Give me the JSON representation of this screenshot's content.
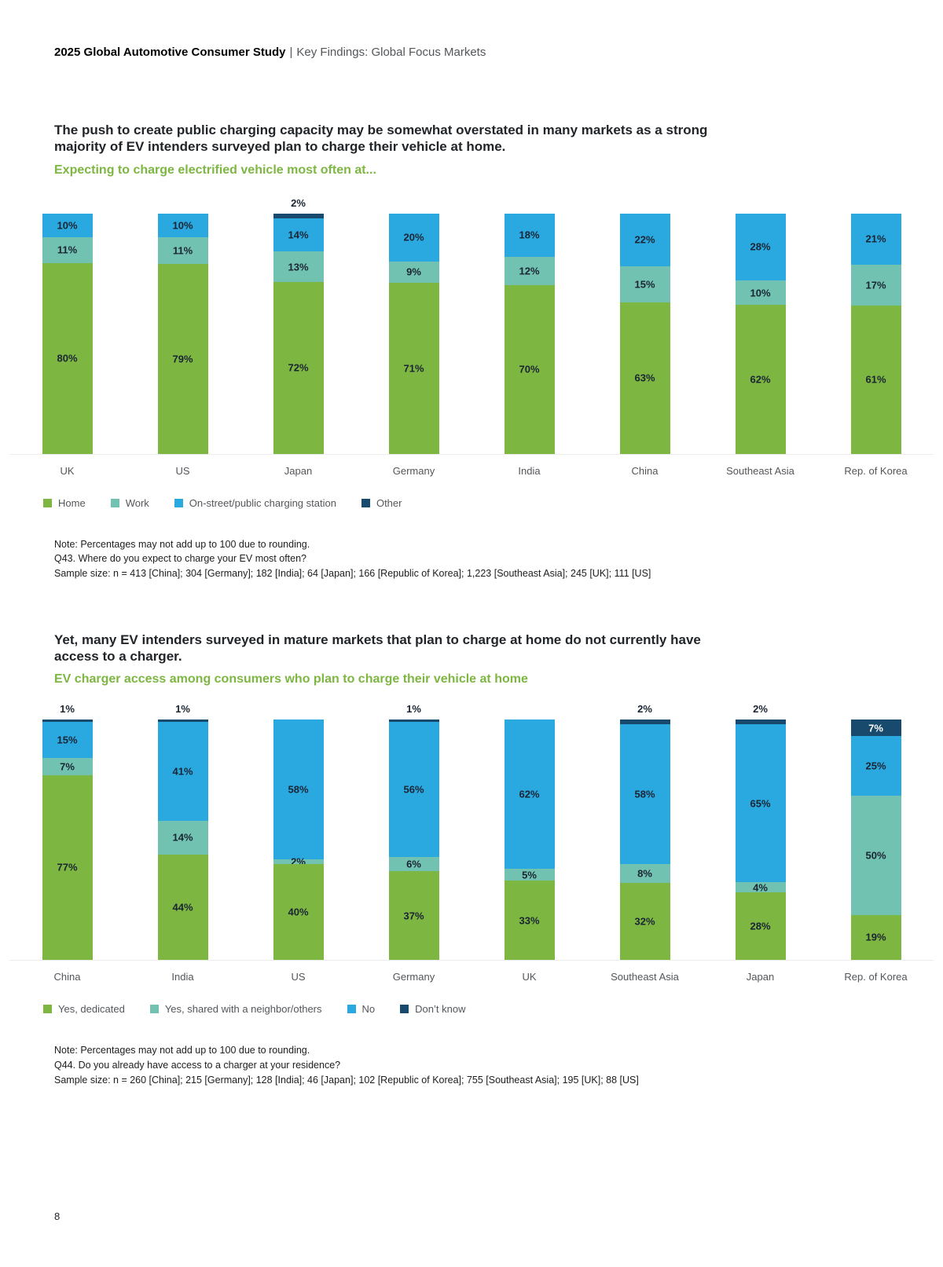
{
  "header": {
    "bold": "2025 Global Automotive Consumer Study",
    "separator": "|",
    "rest": "Key Findings: Global Focus Markets"
  },
  "page_number": "8",
  "colors": {
    "green": "#7db742",
    "teal": "#71c2b1",
    "blue": "#29a9e0",
    "navy": "#174a6c",
    "label_dark": "#1a2433",
    "label_light": "#ffffff",
    "subtitle_green": "#7db742"
  },
  "sections": [
    {
      "title": "The push to create public charging capacity may be somewhat overstated in many markets as a strong majority of EV intenders surveyed plan to charge their vehicle at home.",
      "subtitle": "Expecting to charge electrified vehicle most often at...",
      "notes": [
        "Note: Percentages may not add up to 100 due to rounding.",
        "Q43. Where do you expect to charge your EV most often?",
        "Sample size: n = 413 [China]; 304 [Germany]; 182 [India]; 64 [Japan]; 166 [Republic of Korea]; 1,223 [Southeast Asia]; 245 [UK]; 111 [US]"
      ]
    },
    {
      "title": "Yet, many EV intenders surveyed in mature markets that plan to charge at home do not currently have access to a charger.",
      "subtitle": "EV charger access among consumers who plan to charge their vehicle at home",
      "notes": [
        "Note: Percentages may not add up to 100 due to rounding.",
        "Q44. Do you already have access to a charger at your residence?",
        "Sample size: n = 260 [China]; 215 [Germany]; 128 [India]; 46 [Japan]; 102 [Republic of Korea]; 755 [Southeast Asia]; 195 [UK]; 88 [US]"
      ]
    }
  ],
  "chart_data": [
    {
      "type": "bar",
      "subtype": "stacked-vertical-100pct",
      "title": "Expecting to charge electrified vehicle most often at...",
      "unit": "%",
      "ylim": [
        0,
        100
      ],
      "legend_position": "bottom",
      "grid": false,
      "categories": [
        "UK",
        "US",
        "Japan",
        "Germany",
        "India",
        "China",
        "Southeast Asia",
        "Rep. of Korea"
      ],
      "series": [
        {
          "name": "Home",
          "color": "green",
          "values": [
            80,
            79,
            72,
            71,
            70,
            63,
            62,
            61
          ]
        },
        {
          "name": "Work",
          "color": "teal",
          "values": [
            11,
            11,
            13,
            9,
            12,
            15,
            10,
            17
          ]
        },
        {
          "name": "On-street/public charging station",
          "color": "blue",
          "values": [
            10,
            10,
            14,
            20,
            18,
            22,
            28,
            21
          ]
        },
        {
          "name": "Other",
          "color": "navy",
          "values": [
            0,
            0,
            2,
            0,
            0,
            0,
            0,
            0
          ]
        }
      ]
    },
    {
      "type": "bar",
      "subtype": "stacked-vertical-100pct",
      "title": "EV charger access among consumers who plan to charge their vehicle at home",
      "unit": "%",
      "ylim": [
        0,
        100
      ],
      "legend_position": "bottom",
      "grid": false,
      "categories": [
        "China",
        "India",
        "US",
        "Germany",
        "UK",
        "Southeast Asia",
        "Japan",
        "Rep. of Korea"
      ],
      "series": [
        {
          "name": "Yes, dedicated",
          "color": "green",
          "values": [
            77,
            44,
            40,
            37,
            33,
            32,
            28,
            19
          ]
        },
        {
          "name": "Yes, shared with a neighbor/others",
          "color": "teal",
          "values": [
            7,
            14,
            2,
            6,
            5,
            8,
            4,
            50
          ]
        },
        {
          "name": "No",
          "color": "blue",
          "values": [
            15,
            41,
            58,
            56,
            62,
            58,
            65,
            25
          ]
        },
        {
          "name": "Don’t know",
          "color": "navy",
          "values": [
            1,
            1,
            0,
            1,
            0,
            2,
            2,
            7
          ]
        }
      ]
    }
  ]
}
